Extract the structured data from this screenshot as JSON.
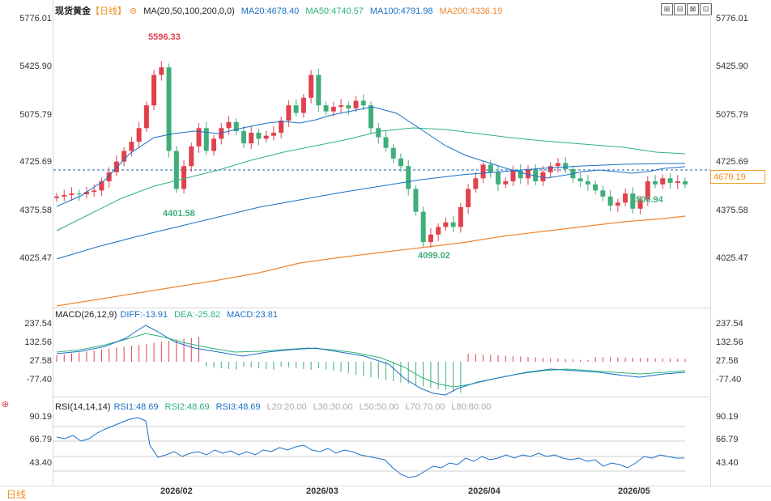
{
  "header": {
    "symbol": "现货黄金",
    "period": "【日线】",
    "ma_label": "MA(20,50,100,200,0,0)",
    "ma20": "MA20:4678.40",
    "ma50": "MA50:4740.57",
    "ma100": "MA100:4791.98",
    "ma200": "MA200:4336.19"
  },
  "toolbar": [
    "⊞",
    "⊟",
    "⊠",
    "⊡"
  ],
  "price_axis": {
    "labels": [
      "5776.01",
      "5425.90",
      "5075.79",
      "4725.69",
      "4375.58",
      "4025.47"
    ],
    "current_price": "4679.19",
    "current_value": 4679.19
  },
  "annotations": {
    "high": "5596.33",
    "low1": "4401.58",
    "low2": "4099.02",
    "low3": "4500.94"
  },
  "macd": {
    "label": "MACD(26,12,9)",
    "diff": "DIFF:-13.91",
    "dea": "DEA:-25.82",
    "macd": "MACD:23.81",
    "axis": [
      "237.54",
      "132.56",
      "27.58",
      "-77.40"
    ]
  },
  "rsi": {
    "label": "RSI(14,14,14)",
    "rsi1": "RSI1:48.69",
    "rsi2": "RSI2:48.69",
    "rsi3": "RSI3:48.69",
    "l20": "L20:20.00",
    "l30": "L30:30.00",
    "l50": "L50:50.00",
    "l70": "L70:70.00",
    "l80": "L80:80.00",
    "axis": [
      "90.19",
      "66.79",
      "43.40"
    ]
  },
  "x_axis": [
    "2026/02",
    "2026/03",
    "2026/04",
    "2026/05"
  ],
  "footer": {
    "period_tab": "日线"
  },
  "colors": {
    "up": "#e0414d",
    "down": "#3fae7a",
    "ma20": "#1a6fc7",
    "ma50": "#2db37a",
    "ma100": "#1a6fc7",
    "ma200": "#f0862d",
    "diff": "#1a6fc7",
    "dea": "#2db37a"
  },
  "chart_data": {
    "type": "candlestick",
    "ylim": [
      3880,
      5776
    ],
    "closes": [
      4600,
      4610,
      4620,
      4615,
      4630,
      4640,
      4700,
      4760,
      4830,
      4900,
      4960,
      5050,
      5200,
      5400,
      5450,
      4900,
      4650,
      4800,
      4930,
      5050,
      4900,
      4980,
      5050,
      5090,
      5030,
      4950,
      5020,
      4980,
      5000,
      5020,
      5100,
      5200,
      5150,
      5250,
      5400,
      5200,
      5160,
      5190,
      5200,
      5180,
      5230,
      5200,
      5050,
      4990,
      4920,
      4850,
      4800,
      4650,
      4500,
      4300,
      4350,
      4400,
      4430,
      4400,
      4530,
      4650,
      4720,
      4810,
      4760,
      4680,
      4700,
      4770,
      4720,
      4780,
      4700,
      4760,
      4800,
      4820,
      4780,
      4720,
      4700,
      4680,
      4640,
      4600,
      4540,
      4560,
      4620,
      4520,
      4580,
      4700,
      4680,
      4720,
      4690,
      4700,
      4680
    ],
    "ma200": [
      3890,
      3950,
      4020,
      4080,
      4140,
      4200,
      4260,
      4305,
      4335,
      4350,
      4360,
      4380,
      4395,
      4405
    ],
    "macd_hist": [
      23.81
    ],
    "rsi": [
      48.69
    ]
  }
}
